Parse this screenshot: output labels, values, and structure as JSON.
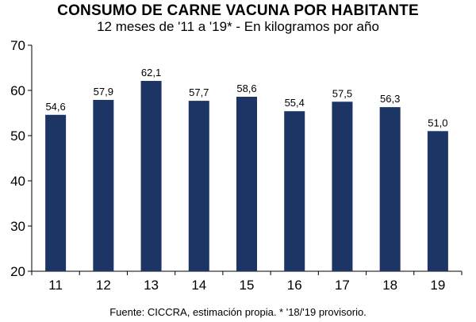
{
  "chart_data": {
    "type": "bar",
    "title": "CONSUMO DE CARNE VACUNA POR HABITANTE",
    "subtitle": "12 meses de '11 a '19* - En kilogramos por año",
    "categories": [
      "11",
      "12",
      "13",
      "14",
      "15",
      "16",
      "17",
      "18",
      "19"
    ],
    "values": [
      54.6,
      57.9,
      62.1,
      57.7,
      58.6,
      55.4,
      57.5,
      56.3,
      51.0
    ],
    "data_labels": [
      "54,6",
      "57,9",
      "62,1",
      "57,7",
      "58,6",
      "55,4",
      "57,5",
      "56,3",
      "51,0"
    ],
    "ylim": [
      20,
      70
    ],
    "yticks": [
      20,
      30,
      40,
      50,
      60,
      70
    ],
    "bar_color": "#1c3564",
    "grid": false,
    "legend": "none",
    "source": "Fuente: CICCRA, estimación propia. * '18/'19 provisorio."
  }
}
